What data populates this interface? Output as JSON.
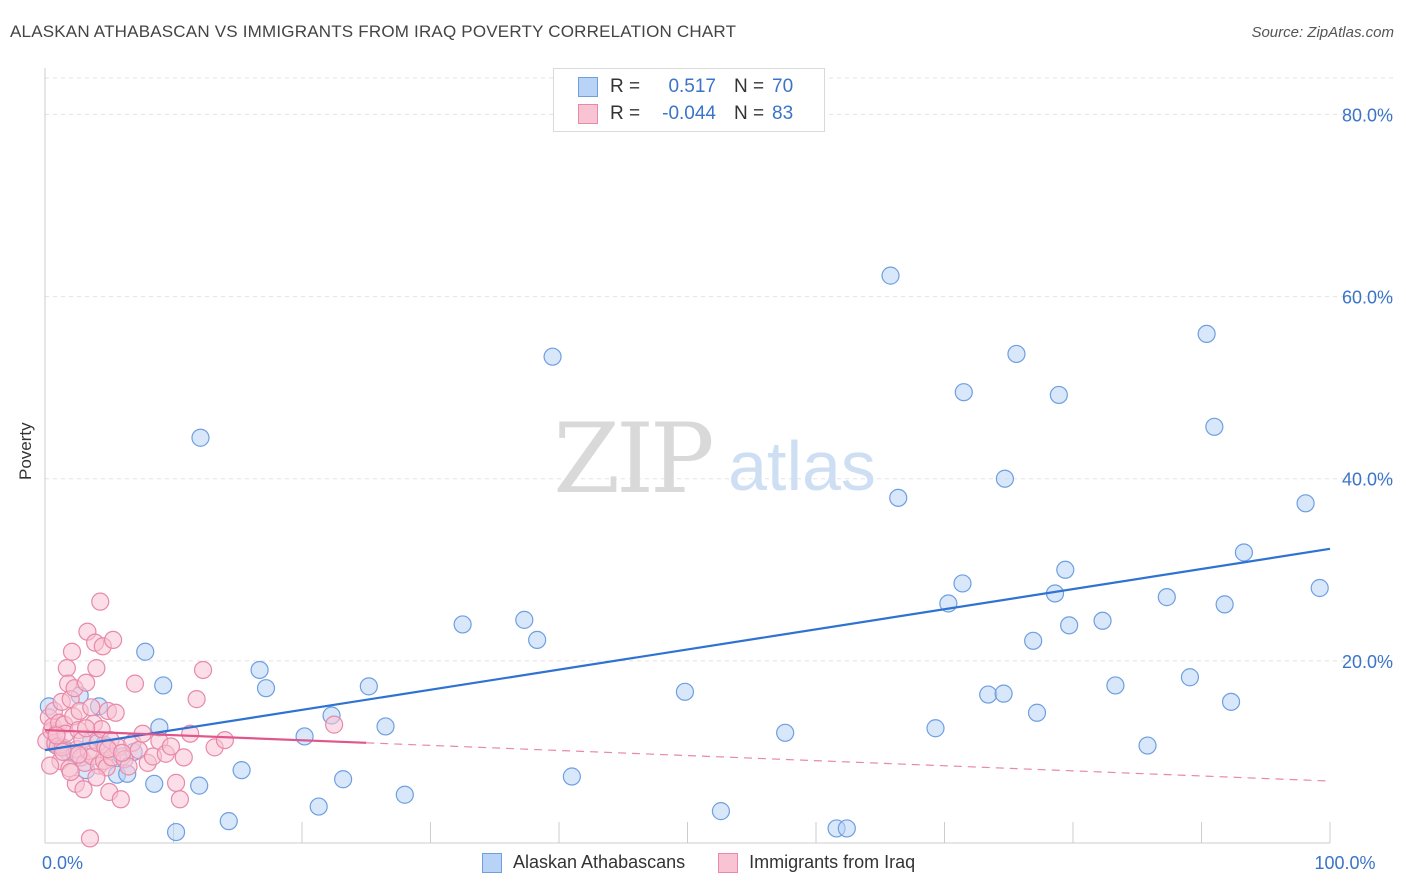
{
  "title": "ALASKAN ATHABASCAN VS IMMIGRANTS FROM IRAQ POVERTY CORRELATION CHART",
  "source": "Source: ZipAtlas.com",
  "watermark": {
    "zip": "ZIP",
    "atlas": "atlas"
  },
  "legend": {
    "r_label": "R =",
    "n_label": "N =",
    "rows": [
      {
        "r": "0.517",
        "n": "70",
        "fill": "#b8d3f5",
        "stroke": "#6e9fe0"
      },
      {
        "r": "-0.044",
        "n": "83",
        "fill": "#f8c3d3",
        "stroke": "#e889a8"
      }
    ]
  },
  "bottom_legend": [
    {
      "label": "Alaskan Athabascans",
      "fill": "#b8d3f5",
      "stroke": "#6e9fe0"
    },
    {
      "label": "Immigrants from Iraq",
      "fill": "#f8c3d3",
      "stroke": "#e889a8"
    }
  ],
  "chart_data": {
    "type": "scatter",
    "title": "ALASKAN ATHABASCAN VS IMMIGRANTS FROM IRAQ POVERTY CORRELATION CHART",
    "xlabel": "",
    "ylabel": "Poverty",
    "xlim": [
      0,
      100
    ],
    "ylim": [
      0,
      84
    ],
    "x_tick_labels": [
      {
        "value": 0,
        "label": "0.0%"
      },
      {
        "value": 100,
        "label": "100.0%"
      }
    ],
    "y_tick_labels": [
      {
        "value": 20,
        "label": "20.0%"
      },
      {
        "value": 40,
        "label": "40.0%"
      },
      {
        "value": 60,
        "label": "60.0%"
      },
      {
        "value": 80,
        "label": "80.0%"
      }
    ],
    "x_minor_ticks": [
      10,
      20,
      30,
      40,
      50,
      60,
      70,
      80,
      90,
      100
    ],
    "series": [
      {
        "name": "Alaskan Athabascans",
        "color": "#6e9fe0",
        "fill": "#b8d3f5",
        "trend": {
          "x": [
            0,
            100
          ],
          "y": [
            10.2,
            32.3
          ],
          "dashed_from": null,
          "color": "#2e72d2"
        },
        "points": [
          [
            0.3,
            15.0
          ],
          [
            0.8,
            10.8
          ],
          [
            1.2,
            10.5
          ],
          [
            1.8,
            10.0
          ],
          [
            2.3,
            9.8
          ],
          [
            2.7,
            16.2
          ],
          [
            3.2,
            8.0
          ],
          [
            3.6,
            11.2
          ],
          [
            4.2,
            15.0
          ],
          [
            4.6,
            10.8
          ],
          [
            5.6,
            7.5
          ],
          [
            6.0,
            9.5
          ],
          [
            6.4,
            7.6
          ],
          [
            6.9,
            10.0
          ],
          [
            7.8,
            21.0
          ],
          [
            8.5,
            6.5
          ],
          [
            8.9,
            12.7
          ],
          [
            9.2,
            17.3
          ],
          [
            10.2,
            1.2
          ],
          [
            12.0,
            6.3
          ],
          [
            12.1,
            44.5
          ],
          [
            14.3,
            2.4
          ],
          [
            15.3,
            8.0
          ],
          [
            16.7,
            19.0
          ],
          [
            17.2,
            17.0
          ],
          [
            20.2,
            11.7
          ],
          [
            21.3,
            4.0
          ],
          [
            22.3,
            14.0
          ],
          [
            23.2,
            7.0
          ],
          [
            25.2,
            17.2
          ],
          [
            26.5,
            12.8
          ],
          [
            28.0,
            5.3
          ],
          [
            32.5,
            24.0
          ],
          [
            37.3,
            24.5
          ],
          [
            38.3,
            22.3
          ],
          [
            39.5,
            53.4
          ],
          [
            41.0,
            7.3
          ],
          [
            49.8,
            16.6
          ],
          [
            52.6,
            3.5
          ],
          [
            57.6,
            12.1
          ],
          [
            61.6,
            1.6
          ],
          [
            62.4,
            1.6
          ],
          [
            65.8,
            62.3
          ],
          [
            66.4,
            37.9
          ],
          [
            69.3,
            12.6
          ],
          [
            70.3,
            26.3
          ],
          [
            71.4,
            28.5
          ],
          [
            71.5,
            49.5
          ],
          [
            73.4,
            16.3
          ],
          [
            74.6,
            16.4
          ],
          [
            74.7,
            40.0
          ],
          [
            75.6,
            53.7
          ],
          [
            76.9,
            22.2
          ],
          [
            77.2,
            14.3
          ],
          [
            78.6,
            27.4
          ],
          [
            78.9,
            49.2
          ],
          [
            79.4,
            30.0
          ],
          [
            79.7,
            23.9
          ],
          [
            82.3,
            24.4
          ],
          [
            83.3,
            17.3
          ],
          [
            85.8,
            10.7
          ],
          [
            87.3,
            27.0
          ],
          [
            89.1,
            18.2
          ],
          [
            90.4,
            55.9
          ],
          [
            91.0,
            45.7
          ],
          [
            91.8,
            26.2
          ],
          [
            92.3,
            15.5
          ],
          [
            93.3,
            31.9
          ],
          [
            98.1,
            37.3
          ],
          [
            99.2,
            28.0
          ]
        ]
      },
      {
        "name": "Immigrants from Iraq",
        "color": "#e889a8",
        "fill": "#f8c3d3",
        "trend": {
          "x": [
            0,
            100
          ],
          "y": [
            12.4,
            6.8
          ],
          "dashed_from": 25.0,
          "color": "#e0568a"
        },
        "points": [
          [
            0.1,
            11.2
          ],
          [
            0.3,
            13.8
          ],
          [
            0.5,
            12.3
          ],
          [
            0.6,
            12.8
          ],
          [
            0.7,
            14.5
          ],
          [
            0.8,
            11.0
          ],
          [
            0.9,
            12.0
          ],
          [
            1.0,
            10.6
          ],
          [
            1.1,
            13.2
          ],
          [
            1.2,
            9.0
          ],
          [
            1.3,
            15.5
          ],
          [
            1.4,
            10.5
          ],
          [
            1.5,
            13.0
          ],
          [
            1.6,
            12.0
          ],
          [
            1.7,
            19.2
          ],
          [
            1.8,
            17.5
          ],
          [
            1.9,
            8.2
          ],
          [
            2.0,
            15.8
          ],
          [
            2.1,
            21.0
          ],
          [
            2.2,
            13.9
          ],
          [
            2.3,
            17.0
          ],
          [
            2.4,
            6.5
          ],
          [
            2.5,
            10.3
          ],
          [
            2.6,
            12.4
          ],
          [
            2.7,
            14.5
          ],
          [
            2.8,
            9.4
          ],
          [
            2.9,
            11.3
          ],
          [
            3.0,
            5.9
          ],
          [
            3.1,
            8.8
          ],
          [
            3.2,
            17.6
          ],
          [
            3.3,
            23.2
          ],
          [
            3.4,
            10.1
          ],
          [
            3.5,
            0.5
          ],
          [
            3.6,
            14.9
          ],
          [
            3.7,
            9.5
          ],
          [
            3.8,
            13.1
          ],
          [
            3.9,
            22.0
          ],
          [
            4.0,
            19.2
          ],
          [
            4.1,
            11.0
          ],
          [
            4.2,
            8.5
          ],
          [
            4.3,
            26.5
          ],
          [
            4.4,
            12.5
          ],
          [
            4.5,
            21.6
          ],
          [
            4.6,
            9.0
          ],
          [
            4.7,
            10.5
          ],
          [
            4.8,
            8.3
          ],
          [
            4.9,
            14.5
          ],
          [
            5.0,
            5.6
          ],
          [
            5.1,
            11.3
          ],
          [
            5.2,
            9.4
          ],
          [
            5.3,
            22.3
          ],
          [
            5.5,
            14.3
          ],
          [
            5.7,
            10.5
          ],
          [
            5.9,
            4.8
          ],
          [
            6.2,
            9.2
          ],
          [
            6.5,
            8.4
          ],
          [
            6.8,
            11.0
          ],
          [
            7.0,
            17.5
          ],
          [
            7.3,
            10.2
          ],
          [
            7.6,
            12.0
          ],
          [
            8.0,
            8.8
          ],
          [
            8.4,
            9.5
          ],
          [
            8.9,
            11.2
          ],
          [
            9.4,
            9.8
          ],
          [
            9.8,
            10.6
          ],
          [
            10.2,
            6.6
          ],
          [
            10.5,
            4.8
          ],
          [
            10.8,
            9.4
          ],
          [
            11.3,
            12.0
          ],
          [
            11.8,
            15.8
          ],
          [
            12.3,
            19.0
          ],
          [
            13.2,
            10.5
          ],
          [
            14.0,
            11.3
          ],
          [
            22.5,
            13.0
          ],
          [
            0.4,
            8.5
          ],
          [
            0.9,
            11.8
          ],
          [
            1.4,
            10.0
          ],
          [
            2.0,
            7.8
          ],
          [
            2.6,
            9.7
          ],
          [
            3.2,
            12.6
          ],
          [
            4.0,
            7.2
          ],
          [
            4.9,
            10.3
          ],
          [
            6.0,
            9.9
          ]
        ]
      }
    ]
  }
}
